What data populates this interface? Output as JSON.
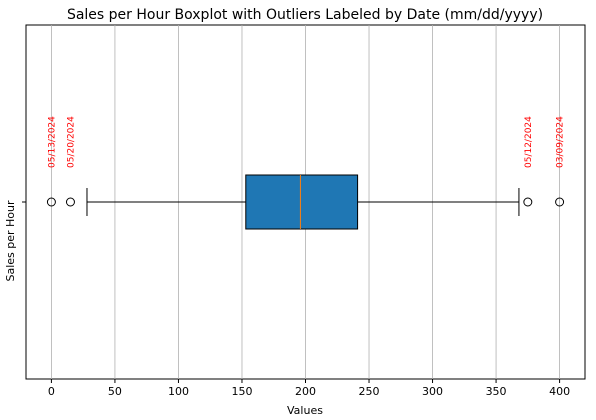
{
  "chart_data": {
    "type": "boxplot",
    "orientation": "horizontal",
    "title": "Sales per Hour Boxplot with Outliers Labeled by Date (mm/dd/yyyy)",
    "xlabel": "Values",
    "ylabel": "Sales per Hour",
    "xlim": [
      -20,
      420
    ],
    "xticks": [
      0,
      50,
      100,
      150,
      200,
      250,
      300,
      350,
      400
    ],
    "grid": "vertical",
    "box": {
      "whisker_low": 28,
      "q1": 153,
      "median": 196,
      "q3": 241,
      "whisker_high": 368,
      "color": "#1f77b4",
      "median_color": "#ff7f0e"
    },
    "outliers": [
      {
        "value": 0,
        "label": "05/13/2024"
      },
      {
        "value": 15,
        "label": "05/20/2024"
      },
      {
        "value": 375,
        "label": "05/12/2024"
      },
      {
        "value": 400,
        "label": "03/09/2024"
      }
    ],
    "outlier_label_color": "#ff0000"
  }
}
